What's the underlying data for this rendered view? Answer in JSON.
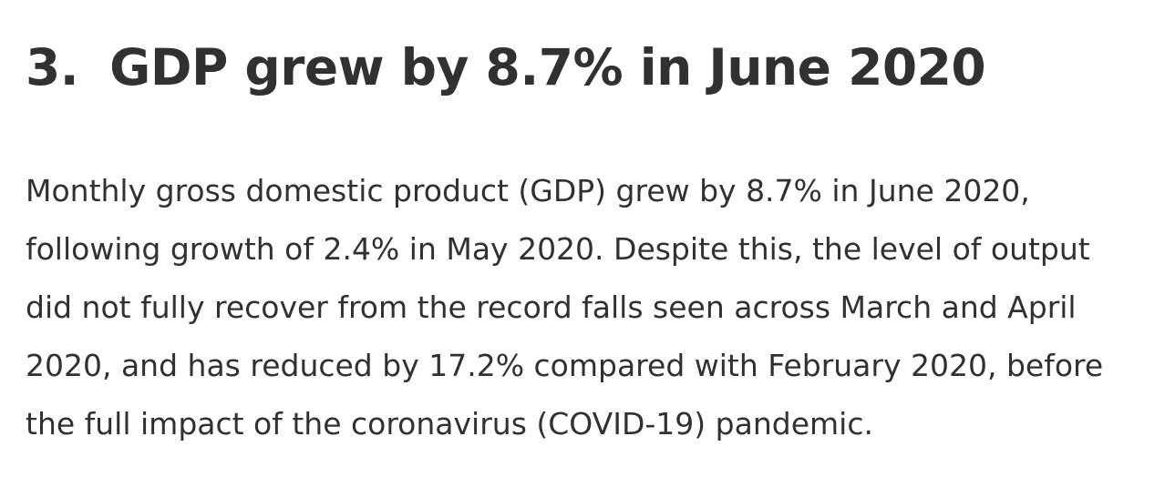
{
  "heading": {
    "number": "3.",
    "title": "GDP grew by 8.7% in June 2020"
  },
  "paragraph": {
    "lines": [
      "Monthly gross domestic product (GDP) grew by 8.7% in June 2020,",
      "following growth of 2.4% in May 2020. Despite this, the level of output",
      "did not fully recover from the record falls seen across March and April",
      "2020, and has reduced by 17.2% compared with February 2020, before",
      "the full impact of the coronavirus (COVID-19) pandemic."
    ]
  },
  "colors": {
    "text": "#323132",
    "background": "#ffffff"
  }
}
